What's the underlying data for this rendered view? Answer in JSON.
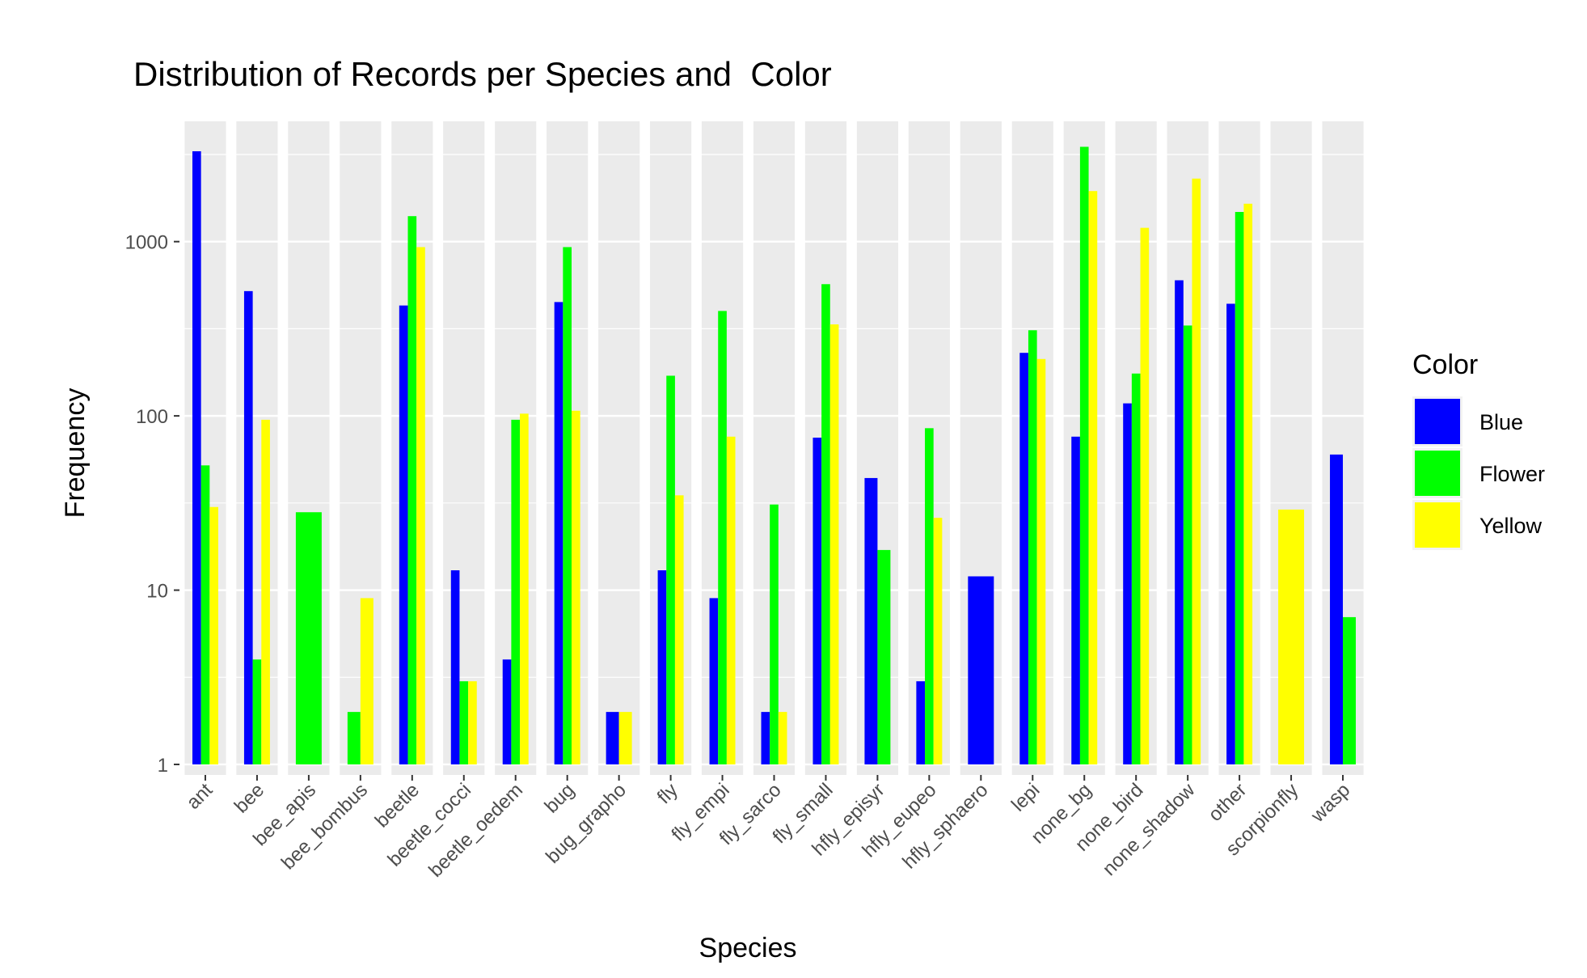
{
  "chart_data": {
    "type": "bar",
    "title": "Distribution of Records per Species and  Color",
    "xlabel": "Species",
    "ylabel": "Frequency",
    "yscale": "log10",
    "ylim": [
      0.87,
      4900
    ],
    "yticks": [
      1,
      10,
      100,
      1000
    ],
    "ytick_labels": [
      "1",
      "10",
      "100",
      "1000"
    ],
    "legend_title": "Color",
    "legend_position": "right",
    "grid": true,
    "bar_position": "dodge",
    "categories": [
      "ant",
      "bee",
      "bee_apis",
      "bee_bombus",
      "beetle",
      "beetle_cocci",
      "beetle_oedem",
      "bug",
      "bug_grapho",
      "fly",
      "fly_empi",
      "fly_sarco",
      "fly_small",
      "hfly_episyr",
      "hfly_eupeo",
      "hfly_sphaero",
      "lepi",
      "none_bg",
      "none_bird",
      "none_shadow",
      "other",
      "scorpionfly",
      "wasp"
    ],
    "series": [
      {
        "name": "Blue",
        "color": "#0000FF",
        "values": [
          3300,
          520,
          null,
          null,
          430,
          13,
          4,
          450,
          2,
          13,
          9,
          2,
          75,
          44,
          3,
          12,
          230,
          76,
          118,
          600,
          440,
          null,
          60
        ]
      },
      {
        "name": "Flower",
        "color": "#00FF00",
        "values": [
          52,
          4,
          28,
          2,
          1400,
          3,
          95,
          930,
          null,
          170,
          400,
          31,
          570,
          17,
          85,
          null,
          310,
          3500,
          175,
          330,
          1480,
          null,
          7
        ]
      },
      {
        "name": "Yellow",
        "color": "#FFFF00",
        "values": [
          30,
          95,
          null,
          9,
          930,
          3,
          103,
          107,
          2,
          35,
          76,
          2,
          335,
          null,
          26,
          null,
          212,
          1950,
          1200,
          2300,
          1650,
          29,
          null
        ]
      }
    ]
  }
}
